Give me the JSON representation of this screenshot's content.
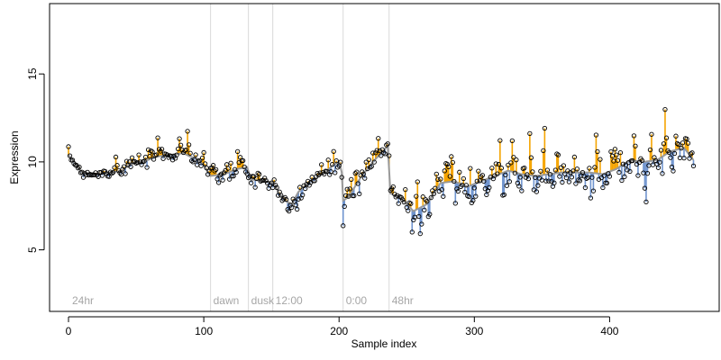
{
  "chart_data": {
    "type": "scatter",
    "xlabel": "Sample index",
    "ylabel": "Expression",
    "xlim": [
      -14,
      481
    ],
    "ylim": [
      1.5,
      19
    ],
    "xticks": [
      0,
      100,
      200,
      300,
      400
    ],
    "yticks": [
      5,
      10,
      15
    ],
    "grid": false,
    "legend": "none",
    "baseline_color": "#999999",
    "up_color": "#f5a400",
    "down_color": "#6f94cf",
    "region_line_color": "#d9d9d9",
    "regions": [
      {
        "x": 0,
        "label": "24hr"
      },
      {
        "x": 105,
        "label": "dawn"
      },
      {
        "x": 133,
        "label": "dusk"
      },
      {
        "x": 151,
        "label": "12:00"
      },
      {
        "x": 203,
        "label": "0:00"
      },
      {
        "x": 237,
        "label": "48hr"
      }
    ],
    "anchors": [
      [
        0,
        10.4
      ],
      [
        5,
        9.9
      ],
      [
        10,
        9.4
      ],
      [
        20,
        9.3
      ],
      [
        30,
        9.4
      ],
      [
        40,
        9.5
      ],
      [
        45,
        9.9
      ],
      [
        55,
        10.0
      ],
      [
        65,
        10.3
      ],
      [
        75,
        10.4
      ],
      [
        85,
        10.5
      ],
      [
        90,
        10.3
      ],
      [
        95,
        10.2
      ],
      [
        100,
        9.8
      ],
      [
        105,
        9.2
      ],
      [
        115,
        9.3
      ],
      [
        125,
        9.6
      ],
      [
        132,
        9.7
      ],
      [
        135,
        9.0
      ],
      [
        145,
        8.9
      ],
      [
        152,
        8.8
      ],
      [
        155,
        8.3
      ],
      [
        160,
        7.8
      ],
      [
        165,
        7.6
      ],
      [
        170,
        8.3
      ],
      [
        180,
        9.0
      ],
      [
        190,
        9.4
      ],
      [
        195,
        9.8
      ],
      [
        200,
        10.0
      ],
      [
        202,
        9.4
      ],
      [
        203,
        7.8
      ],
      [
        207,
        8.0
      ],
      [
        215,
        9.0
      ],
      [
        225,
        10.0
      ],
      [
        236,
        10.9
      ],
      [
        238,
        8.2
      ],
      [
        245,
        8.0
      ],
      [
        255,
        7.2
      ],
      [
        265,
        7.6
      ],
      [
        275,
        8.8
      ],
      [
        285,
        8.9
      ],
      [
        295,
        8.6
      ],
      [
        305,
        8.9
      ],
      [
        315,
        9.2
      ],
      [
        325,
        9.5
      ],
      [
        335,
        9.3
      ],
      [
        345,
        9.2
      ],
      [
        355,
        9.3
      ],
      [
        365,
        9.4
      ],
      [
        375,
        9.4
      ],
      [
        385,
        9.4
      ],
      [
        395,
        9.3
      ],
      [
        405,
        9.6
      ],
      [
        415,
        10.1
      ],
      [
        425,
        10.0
      ],
      [
        435,
        10.1
      ],
      [
        445,
        10.6
      ],
      [
        455,
        10.8
      ],
      [
        462,
        10.1
      ]
    ],
    "noise": [
      [
        0,
        0.12
      ],
      [
        100,
        0.25
      ],
      [
        152,
        0.35
      ],
      [
        175,
        0.25
      ],
      [
        203,
        0.35
      ],
      [
        238,
        0.45
      ],
      [
        270,
        0.5
      ],
      [
        330,
        0.5
      ],
      [
        400,
        0.45
      ],
      [
        462,
        0.4
      ]
    ],
    "peaks": [
      [
        35,
        0.9
      ],
      [
        66,
        1.0
      ],
      [
        82,
        1.0
      ],
      [
        88,
        1.2
      ],
      [
        100,
        0.6
      ],
      [
        128,
        0.4
      ],
      [
        206,
        0.8
      ],
      [
        229,
        0.7
      ],
      [
        241,
        0.8
      ],
      [
        249,
        0.9
      ],
      [
        258,
        0.7
      ],
      [
        272,
        0.9
      ],
      [
        279,
        1.2
      ],
      [
        283,
        1.6
      ],
      [
        297,
        1.3
      ],
      [
        303,
        1.2
      ],
      [
        319,
        1.0
      ],
      [
        328,
        1.5
      ],
      [
        341,
        1.8
      ],
      [
        352,
        1.8
      ],
      [
        361,
        1.5
      ],
      [
        374,
        1.2
      ],
      [
        390,
        1.5
      ],
      [
        404,
        1.5
      ],
      [
        418,
        1.6
      ],
      [
        430,
        1.4
      ],
      [
        441,
        1.3
      ],
      [
        449,
        1.2
      ],
      [
        456,
        0.9
      ]
    ],
    "dips": [
      [
        158,
        1.0
      ],
      [
        163,
        0.9
      ],
      [
        169,
        0.9
      ],
      [
        203,
        1.2
      ],
      [
        215,
        0.7
      ],
      [
        254,
        0.8
      ],
      [
        260,
        0.8
      ],
      [
        267,
        0.9
      ],
      [
        286,
        1.1
      ],
      [
        298,
        1.2
      ],
      [
        310,
        1.4
      ],
      [
        322,
        1.2
      ],
      [
        334,
        0.8
      ],
      [
        346,
        1.2
      ],
      [
        358,
        1.0
      ],
      [
        365,
        0.9
      ],
      [
        378,
        0.8
      ],
      [
        386,
        0.9
      ],
      [
        398,
        0.8
      ],
      [
        412,
        0.9
      ],
      [
        427,
        0.8
      ],
      [
        437,
        0.8
      ],
      [
        447,
        0.7
      ]
    ],
    "n_points": 463,
    "seed": 7
  }
}
